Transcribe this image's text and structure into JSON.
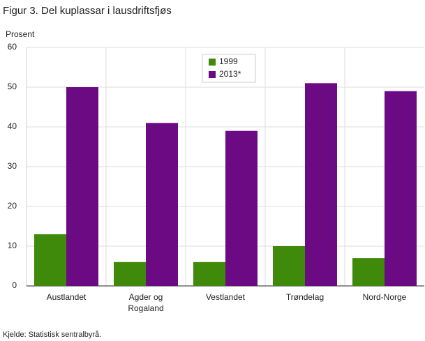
{
  "chart_data": {
    "type": "bar",
    "title": "Figur  3. Del kuplassar i lausdriftsfjøs",
    "y_label": "Prosent",
    "categories": [
      "Austlandet",
      "Agder og Rogaland",
      "Vestlandet",
      "Trøndelag",
      "Nord-Norge"
    ],
    "series": [
      {
        "name": "1999",
        "color": "#3f8a0a",
        "values": [
          13,
          6,
          6,
          10,
          7
        ]
      },
      {
        "name": "2013*",
        "color": "#6b0a82",
        "values": [
          50,
          41,
          39,
          51,
          49
        ]
      }
    ],
    "ylim": [
      0,
      60
    ],
    "yticks": [
      0,
      10,
      20,
      30,
      40,
      50,
      60
    ],
    "grid": true,
    "source": "Kjelde: Statistisk sentralbyrå."
  }
}
